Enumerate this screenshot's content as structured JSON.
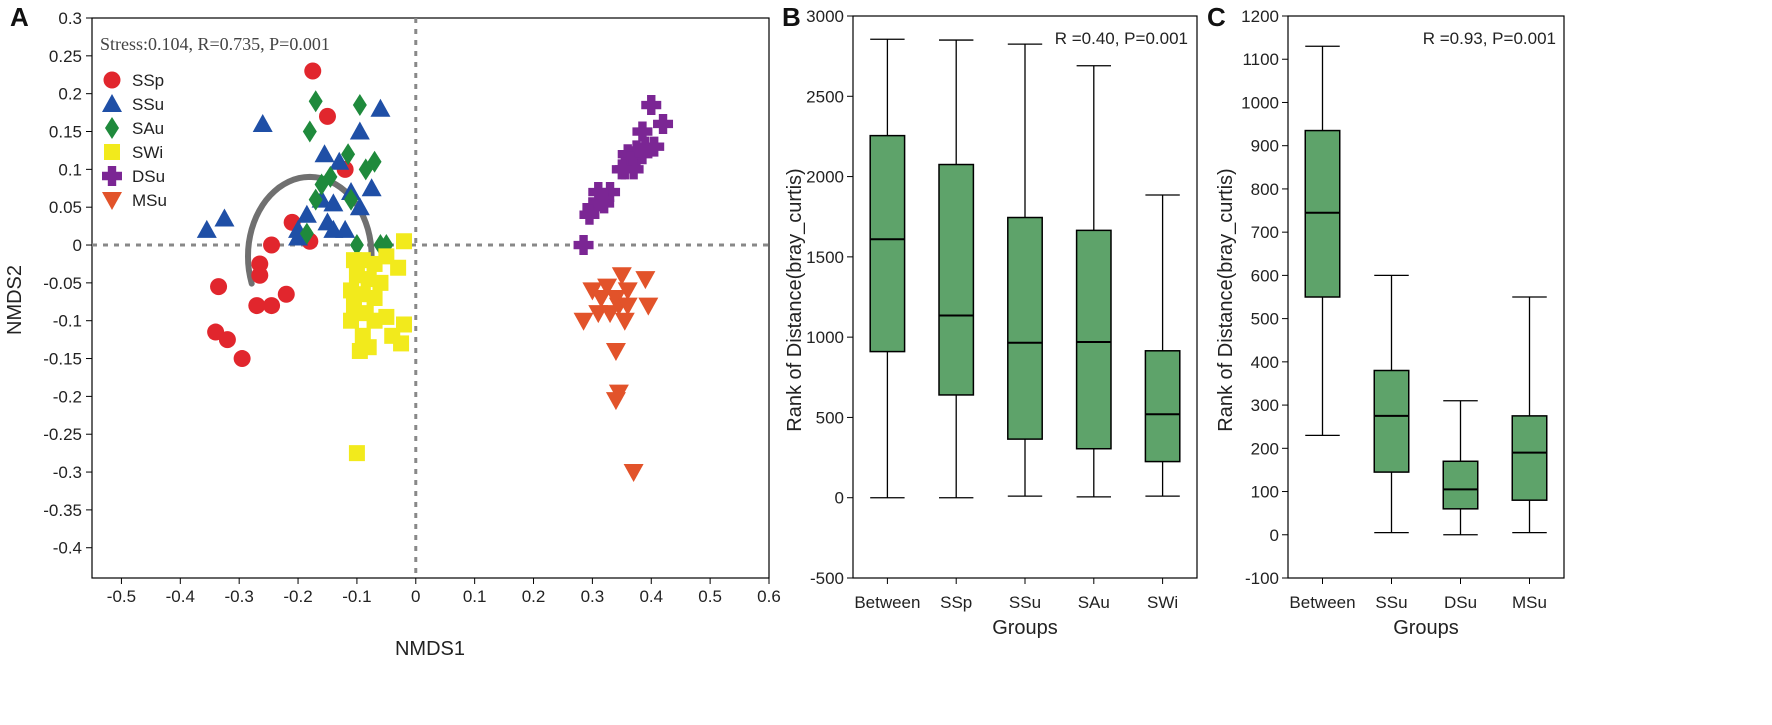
{
  "colors": {
    "SSp": "#e1262d",
    "SSu": "#1f4fa6",
    "SAu": "#1f8a3c",
    "SWi": "#f2ea1c",
    "DSu": "#7b2694",
    "MSu": "#e2532a",
    "box_fill": "#5ea36a",
    "ellipse": "#707070"
  },
  "chart_data": [
    {
      "type": "scatter",
      "panel_label": "A",
      "annotation": "Stress:0.104, R=0.735, P=0.001",
      "xlabel": "NMDS1",
      "ylabel": "NMDS2",
      "xlim": [
        -0.55,
        0.6
      ],
      "ylim": [
        -0.44,
        0.3
      ],
      "xticks": [
        "-0.5",
        "-0.4",
        "-0.3",
        "-0.2",
        "-0.1",
        "0",
        "0.1",
        "0.2",
        "0.3",
        "0.4",
        "0.5",
        "0.6"
      ],
      "yticks": [
        "0.3",
        "0.25",
        "0.2",
        "0.15",
        "0.1",
        "0.05",
        "0",
        "-0.05",
        "-0.1",
        "-0.15",
        "-0.2",
        "-0.25",
        "-0.3",
        "-0.35",
        "-0.4"
      ],
      "reference_lines": {
        "x": 0,
        "y": 0,
        "style": "dotted"
      },
      "grid": false,
      "legend_position": "top-left",
      "series": [
        {
          "name": "SSp",
          "marker": "circle",
          "color_key": "SSp",
          "points": [
            [
              -0.175,
              0.23
            ],
            [
              -0.15,
              0.17
            ],
            [
              -0.12,
              0.1
            ],
            [
              -0.21,
              0.03
            ],
            [
              -0.18,
              0.005
            ],
            [
              -0.245,
              0.0
            ],
            [
              -0.265,
              -0.025
            ],
            [
              -0.265,
              -0.04
            ],
            [
              -0.335,
              -0.055
            ],
            [
              -0.27,
              -0.08
            ],
            [
              -0.245,
              -0.08
            ],
            [
              -0.22,
              -0.065
            ],
            [
              -0.34,
              -0.115
            ],
            [
              -0.32,
              -0.125
            ],
            [
              -0.295,
              -0.15
            ]
          ]
        },
        {
          "name": "SSu",
          "marker": "triangle",
          "color_key": "SSu",
          "points": [
            [
              -0.26,
              0.16
            ],
            [
              -0.06,
              0.18
            ],
            [
              -0.095,
              0.15
            ],
            [
              -0.13,
              0.11
            ],
            [
              -0.155,
              0.12
            ],
            [
              -0.11,
              0.07
            ],
            [
              -0.075,
              0.075
            ],
            [
              -0.16,
              0.06
            ],
            [
              -0.14,
              0.055
            ],
            [
              -0.185,
              0.04
            ],
            [
              -0.15,
              0.03
            ],
            [
              -0.2,
              0.02
            ],
            [
              -0.14,
              0.02
            ],
            [
              -0.325,
              0.035
            ],
            [
              -0.355,
              0.02
            ],
            [
              -0.2,
              0.01
            ],
            [
              -0.12,
              0.02
            ],
            [
              -0.095,
              0.05
            ]
          ]
        },
        {
          "name": "SAu",
          "marker": "diamond",
          "color_key": "SAu",
          "points": [
            [
              -0.17,
              0.19
            ],
            [
              -0.095,
              0.185
            ],
            [
              -0.115,
              0.12
            ],
            [
              -0.18,
              0.15
            ],
            [
              -0.07,
              0.11
            ],
            [
              -0.085,
              0.1
            ],
            [
              -0.145,
              0.09
            ],
            [
              -0.16,
              0.08
            ],
            [
              -0.11,
              0.06
            ],
            [
              -0.17,
              0.06
            ],
            [
              -0.185,
              0.015
            ],
            [
              -0.1,
              0.0
            ],
            [
              -0.06,
              0.0
            ],
            [
              -0.05,
              0.0
            ]
          ]
        },
        {
          "name": "SWi",
          "marker": "square",
          "color_key": "SWi",
          "points": [
            [
              -0.02,
              0.005
            ],
            [
              -0.105,
              -0.02
            ],
            [
              -0.09,
              -0.02
            ],
            [
              -0.07,
              -0.025
            ],
            [
              -0.05,
              -0.015
            ],
            [
              -0.03,
              -0.03
            ],
            [
              -0.1,
              -0.04
            ],
            [
              -0.08,
              -0.045
            ],
            [
              -0.06,
              -0.05
            ],
            [
              -0.11,
              -0.06
            ],
            [
              -0.09,
              -0.065
            ],
            [
              -0.07,
              -0.07
            ],
            [
              -0.105,
              -0.08
            ],
            [
              -0.085,
              -0.09
            ],
            [
              -0.11,
              -0.1
            ],
            [
              -0.07,
              -0.1
            ],
            [
              -0.05,
              -0.095
            ],
            [
              -0.02,
              -0.105
            ],
            [
              -0.09,
              -0.12
            ],
            [
              -0.04,
              -0.12
            ],
            [
              -0.025,
              -0.13
            ],
            [
              -0.08,
              -0.135
            ],
            [
              -0.095,
              -0.14
            ],
            [
              -0.1,
              -0.275
            ]
          ]
        },
        {
          "name": "DSu",
          "marker": "cross",
          "color_key": "DSu",
          "points": [
            [
              0.4,
              0.185
            ],
            [
              0.42,
              0.16
            ],
            [
              0.385,
              0.15
            ],
            [
              0.375,
              0.125
            ],
            [
              0.39,
              0.13
            ],
            [
              0.405,
              0.13
            ],
            [
              0.36,
              0.12
            ],
            [
              0.385,
              0.12
            ],
            [
              0.365,
              0.11
            ],
            [
              0.355,
              0.1
            ],
            [
              0.37,
              0.1
            ],
            [
              0.35,
              0.1
            ],
            [
              0.33,
              0.07
            ],
            [
              0.31,
              0.07
            ],
            [
              0.3,
              0.05
            ],
            [
              0.32,
              0.055
            ],
            [
              0.295,
              0.04
            ],
            [
              0.285,
              0.0
            ]
          ]
        },
        {
          "name": "MSu",
          "marker": "triangle-down",
          "color_key": "MSu",
          "points": [
            [
              0.35,
              -0.04
            ],
            [
              0.39,
              -0.045
            ],
            [
              0.325,
              -0.055
            ],
            [
              0.36,
              -0.06
            ],
            [
              0.3,
              -0.06
            ],
            [
              0.34,
              -0.07
            ],
            [
              0.315,
              -0.07
            ],
            [
              0.345,
              -0.08
            ],
            [
              0.31,
              -0.09
            ],
            [
              0.36,
              -0.08
            ],
            [
              0.395,
              -0.08
            ],
            [
              0.33,
              -0.09
            ],
            [
              0.285,
              -0.1
            ],
            [
              0.355,
              -0.1
            ],
            [
              0.34,
              -0.14
            ],
            [
              0.345,
              -0.195
            ],
            [
              0.34,
              -0.205
            ],
            [
              0.37,
              -0.3
            ]
          ]
        }
      ]
    },
    {
      "type": "box",
      "panel_label": "B",
      "annotation": "R =0.40, P=0.001",
      "xlabel": "Groups",
      "ylabel": "Rank of Distance(bray_curtis)",
      "ylim": [
        -500,
        3000
      ],
      "yticks": [
        -500,
        0,
        500,
        1000,
        1500,
        2000,
        2500,
        3000
      ],
      "categories": [
        "Between",
        "SSp",
        "SSu",
        "SAu",
        "SWi"
      ],
      "boxes": [
        {
          "min": 0,
          "q1": 910,
          "median": 1610,
          "q3": 2255,
          "max": 2855
        },
        {
          "min": 0,
          "q1": 640,
          "median": 1135,
          "q3": 2075,
          "max": 2850
        },
        {
          "min": 10,
          "q1": 365,
          "median": 965,
          "q3": 1745,
          "max": 2825
        },
        {
          "min": 5,
          "q1": 305,
          "median": 970,
          "q3": 1665,
          "max": 2690
        },
        {
          "min": 10,
          "q1": 225,
          "median": 520,
          "q3": 915,
          "max": 1885
        }
      ]
    },
    {
      "type": "box",
      "panel_label": "C",
      "annotation": "R =0.93, P=0.001",
      "xlabel": "Groups",
      "ylabel": "Rank of Distance(bray_curtis)",
      "ylim": [
        -100,
        1200
      ],
      "yticks": [
        -100,
        0,
        100,
        200,
        300,
        400,
        500,
        600,
        700,
        800,
        900,
        1000,
        1100,
        1200
      ],
      "categories": [
        "Between",
        "SSu",
        "DSu",
        "MSu"
      ],
      "boxes": [
        {
          "min": 230,
          "q1": 550,
          "median": 745,
          "q3": 935,
          "max": 1130
        },
        {
          "min": 5,
          "q1": 145,
          "median": 275,
          "q3": 380,
          "max": 600
        },
        {
          "min": 0,
          "q1": 60,
          "median": 105,
          "q3": 170,
          "max": 310
        },
        {
          "min": 5,
          "q1": 80,
          "median": 190,
          "q3": 275,
          "max": 550
        }
      ]
    }
  ]
}
